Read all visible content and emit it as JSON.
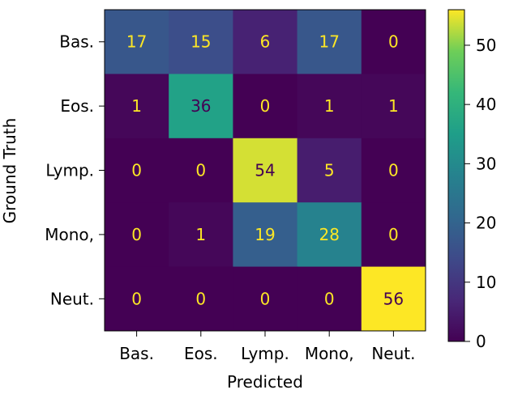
{
  "chart_data": {
    "type": "heatmap",
    "title": "",
    "xlabel": "Predicted",
    "ylabel": "Ground Truth",
    "x_categories": [
      "Bas.",
      "Eos.",
      "Lymp.",
      "Mono,",
      "Neut."
    ],
    "y_categories": [
      "Bas.",
      "Eos.",
      "Lymp.",
      "Mono,",
      "Neut."
    ],
    "matrix": [
      [
        17,
        15,
        6,
        17,
        0
      ],
      [
        1,
        36,
        0,
        1,
        1
      ],
      [
        0,
        0,
        54,
        5,
        0
      ],
      [
        0,
        1,
        19,
        28,
        0
      ],
      [
        0,
        0,
        0,
        0,
        56
      ]
    ],
    "colormap": "viridis",
    "value_range": [
      0,
      56
    ],
    "colorbar_ticks": [
      0,
      10,
      20,
      30,
      40,
      50
    ],
    "colorbar_tick_labels": [
      "0",
      "10",
      "20",
      "30",
      "40",
      "50"
    ],
    "text_color_light": "#fde725",
    "text_color_dark": "#440154",
    "grid": false
  }
}
